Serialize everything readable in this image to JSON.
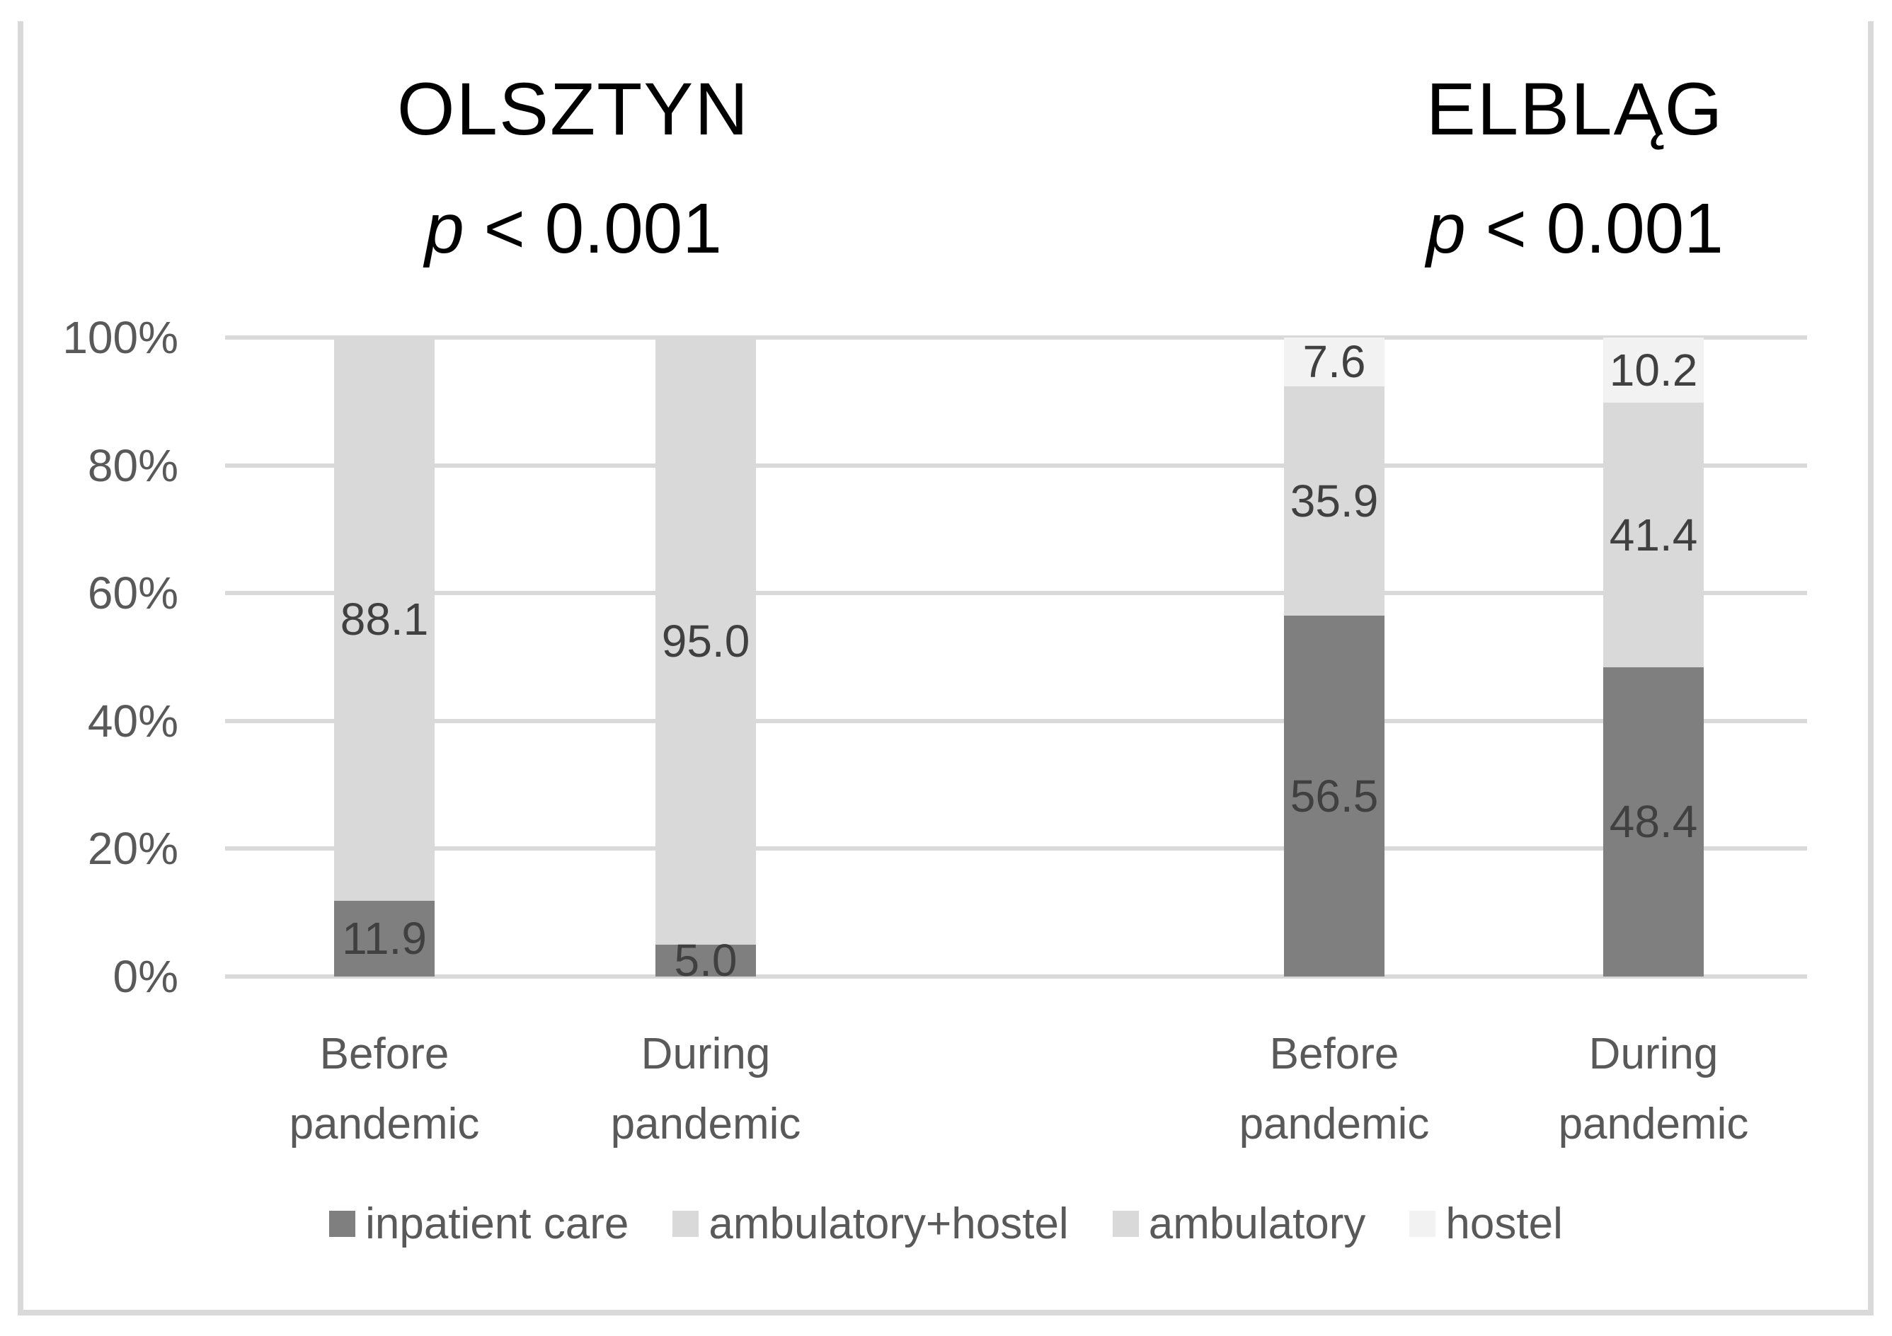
{
  "panels": [
    {
      "title": "OLSZTYN",
      "p_symbol": "p",
      "p_rest": " < 0.001"
    },
    {
      "title": "ELBLĄG",
      "p_symbol": "p",
      "p_rest": " < 0.001"
    }
  ],
  "y_axis": {
    "tick_labels": [
      "100%",
      "80%",
      "60%",
      "40%",
      "20%",
      "0%"
    ]
  },
  "legend": [
    {
      "label": "inpatient care",
      "color": "#7f7f7f"
    },
    {
      "label": "ambulatory+hostel",
      "color": "#d9d9d9"
    },
    {
      "label": "ambulatory",
      "color": "#d9d9d9"
    },
    {
      "label": "hostel",
      "color": "#f2f2f2"
    }
  ],
  "colors": {
    "gridline": "#d9d9d9",
    "frame": "#d9d9d9",
    "axis_text": "#595959",
    "data_label_text": "#404040",
    "title_text": "#000000"
  },
  "chart_data": {
    "type": "bar",
    "stacked": true,
    "unit": "%",
    "ylim": [
      0,
      100
    ],
    "yticks": [
      0,
      20,
      40,
      60,
      80,
      100
    ],
    "grid": true,
    "legend_position": "bottom",
    "groups": [
      {
        "title": "OLSZTYN",
        "p_value": "p < 0.001",
        "categories": [
          "Before pandemic",
          "During pandemic"
        ],
        "series": [
          {
            "name": "inpatient care",
            "values": [
              11.9,
              5.0
            ]
          },
          {
            "name": "ambulatory+hostel",
            "values": [
              88.1,
              95.0
            ]
          }
        ]
      },
      {
        "title": "ELBLĄG",
        "p_value": "p < 0.001",
        "categories": [
          "Before pandemic",
          "During pandemic"
        ],
        "series": [
          {
            "name": "inpatient care",
            "values": [
              56.5,
              48.4
            ]
          },
          {
            "name": "ambulatory",
            "values": [
              35.9,
              41.4
            ]
          },
          {
            "name": "hostel",
            "values": [
              7.6,
              10.2
            ]
          }
        ]
      }
    ]
  }
}
